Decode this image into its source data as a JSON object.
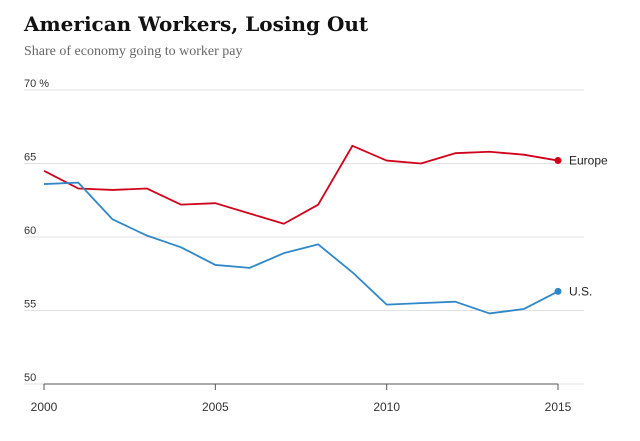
{
  "chart_data": {
    "type": "line",
    "title": "American Workers, Losing Out",
    "subtitle": "Share of economy going to worker pay",
    "xlabel": "",
    "ylabel": "",
    "x": [
      2000,
      2001,
      2002,
      2003,
      2004,
      2005,
      2006,
      2007,
      2008,
      2009,
      2010,
      2011,
      2012,
      2013,
      2014,
      2015
    ],
    "ylim": [
      50,
      70
    ],
    "y_ticks": [
      {
        "value": 70,
        "label": "70 %"
      },
      {
        "value": 65,
        "label": "65"
      },
      {
        "value": 60,
        "label": "60"
      },
      {
        "value": 55,
        "label": "55"
      },
      {
        "value": 50,
        "label": "50"
      }
    ],
    "x_ticks": [
      2000,
      2005,
      2010,
      2015
    ],
    "grid": true,
    "series": [
      {
        "name": "Europe",
        "color": "#d0021b",
        "values": [
          64.5,
          63.3,
          63.2,
          63.3,
          62.2,
          62.3,
          61.6,
          60.9,
          62.2,
          66.2,
          65.2,
          65.0,
          65.7,
          65.8,
          65.6,
          65.2
        ]
      },
      {
        "name": "U.S.",
        "color": "#2f88c8",
        "values": [
          63.6,
          63.7,
          61.2,
          60.1,
          59.3,
          58.1,
          57.9,
          58.9,
          59.5,
          57.6,
          55.4,
          55.5,
          55.6,
          54.8,
          55.1,
          56.3
        ]
      }
    ]
  }
}
